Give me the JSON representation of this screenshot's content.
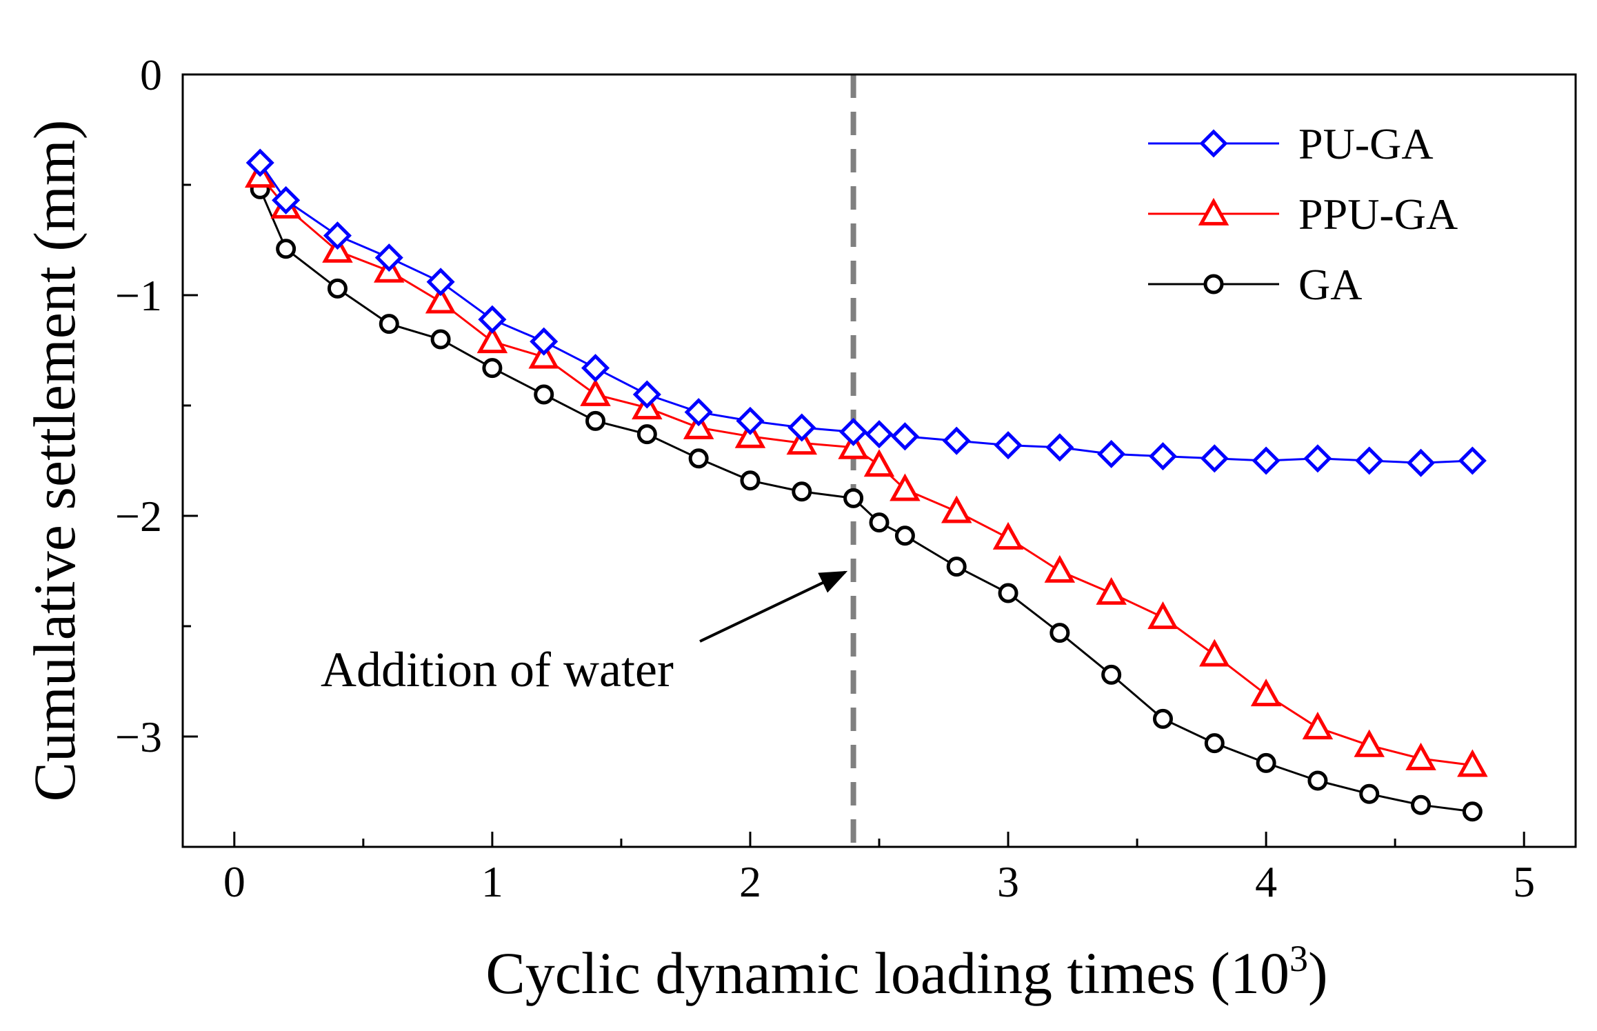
{
  "chart_data": {
    "type": "line",
    "title": "",
    "xlabel": "Cyclic dynamic loading times (10",
    "xlabel_sup": "3",
    "xlabel_end": ")",
    "ylabel": "Cumulative settlement (mm)",
    "xlim": [
      -0.2,
      5.2
    ],
    "ylim": [
      -3.5,
      0
    ],
    "xticks": [
      0,
      1,
      2,
      3,
      4,
      5
    ],
    "xtick_labels": [
      "0",
      "1",
      "2",
      "3",
      "4",
      "5"
    ],
    "yticks": [
      0,
      -1,
      -2,
      -3
    ],
    "ytick_labels": [
      "0",
      "−1",
      "−2",
      "−3"
    ],
    "grid": false,
    "legend_position": "top-right",
    "series": [
      {
        "name": "PU-GA",
        "color": "#0000ff",
        "marker": "diamond",
        "x": [
          0.1,
          0.2,
          0.4,
          0.6,
          0.8,
          1.0,
          1.2,
          1.4,
          1.6,
          1.8,
          2.0,
          2.2,
          2.4,
          2.5,
          2.6,
          2.8,
          3.0,
          3.2,
          3.4,
          3.6,
          3.8,
          4.0,
          4.2,
          4.4,
          4.6,
          4.8
        ],
        "y": [
          -0.4,
          -0.57,
          -0.73,
          -0.83,
          -0.94,
          -1.11,
          -1.21,
          -1.33,
          -1.45,
          -1.53,
          -1.57,
          -1.6,
          -1.62,
          -1.63,
          -1.64,
          -1.66,
          -1.68,
          -1.69,
          -1.72,
          -1.73,
          -1.74,
          -1.75,
          -1.74,
          -1.75,
          -1.76,
          -1.75
        ]
      },
      {
        "name": "PPU-GA",
        "color": "#ff0000",
        "marker": "triangle",
        "x": [
          0.1,
          0.2,
          0.4,
          0.6,
          0.8,
          1.0,
          1.2,
          1.4,
          1.6,
          1.8,
          2.0,
          2.2,
          2.4,
          2.5,
          2.6,
          2.8,
          3.0,
          3.2,
          3.4,
          3.6,
          3.8,
          4.0,
          4.2,
          4.4,
          4.6,
          4.8
        ],
        "y": [
          -0.46,
          -0.6,
          -0.8,
          -0.89,
          -1.03,
          -1.21,
          -1.28,
          -1.45,
          -1.51,
          -1.6,
          -1.64,
          -1.67,
          -1.69,
          -1.77,
          -1.88,
          -1.98,
          -2.1,
          -2.25,
          -2.35,
          -2.46,
          -2.63,
          -2.81,
          -2.96,
          -3.04,
          -3.1,
          -3.13
        ]
      },
      {
        "name": "GA",
        "color": "#000000",
        "marker": "circle",
        "x": [
          0.1,
          0.2,
          0.4,
          0.6,
          0.8,
          1.0,
          1.2,
          1.4,
          1.6,
          1.8,
          2.0,
          2.2,
          2.4,
          2.5,
          2.6,
          2.8,
          3.0,
          3.2,
          3.4,
          3.6,
          3.8,
          4.0,
          4.2,
          4.4,
          4.6,
          4.8
        ],
        "y": [
          -0.52,
          -0.79,
          -0.97,
          -1.13,
          -1.2,
          -1.33,
          -1.45,
          -1.57,
          -1.63,
          -1.74,
          -1.84,
          -1.89,
          -1.92,
          -2.03,
          -2.09,
          -2.23,
          -2.35,
          -2.53,
          -2.72,
          -2.92,
          -3.03,
          -3.12,
          -3.2,
          -3.26,
          -3.31,
          -3.34
        ]
      }
    ],
    "vline": {
      "x": 2.4,
      "color": "#808080"
    },
    "annotation": {
      "text": "Addition of water",
      "arrow_to": [
        2.4,
        -2.23
      ]
    }
  }
}
